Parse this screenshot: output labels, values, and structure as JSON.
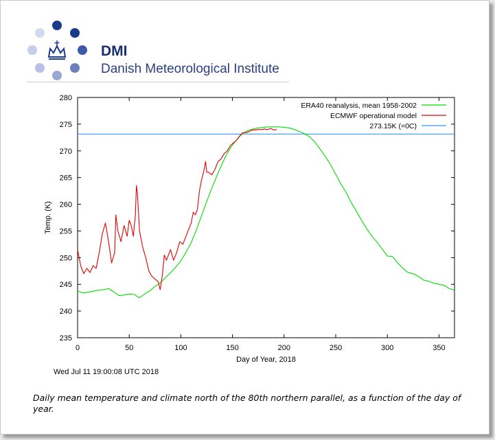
{
  "header": {
    "brand": "DMI",
    "institute": "Danish Meteorological Institute",
    "logo_color": "#1a3a8c"
  },
  "timestamp": "Wed Jul 11 19:00:08 UTC 2018",
  "caption": "Daily mean temperature and climate north of the 80th northern parallel, as a function of the day of year.",
  "chart_data": {
    "type": "line",
    "xlabel": "Day of Year, 2018",
    "ylabel": "Temp. (K)",
    "xlim": [
      0,
      365
    ],
    "ylim": [
      235,
      280
    ],
    "xticks": [
      0,
      50,
      100,
      150,
      200,
      250,
      300,
      350
    ],
    "yticks": [
      235,
      240,
      245,
      250,
      255,
      260,
      265,
      270,
      275,
      280
    ],
    "grid": false,
    "legend_position": "top-right",
    "series": [
      {
        "name": "ERA40 reanalysis, mean 1958-2002",
        "color": "#00dd00",
        "x": [
          0,
          5,
          10,
          15,
          20,
          25,
          30,
          35,
          40,
          45,
          50,
          55,
          58,
          60,
          65,
          70,
          75,
          80,
          85,
          90,
          95,
          100,
          105,
          110,
          115,
          120,
          125,
          130,
          135,
          140,
          145,
          150,
          155,
          160,
          165,
          170,
          175,
          180,
          185,
          190,
          195,
          200,
          205,
          210,
          215,
          220,
          225,
          230,
          235,
          240,
          245,
          250,
          255,
          260,
          265,
          270,
          275,
          280,
          285,
          290,
          295,
          300,
          305,
          310,
          315,
          320,
          325,
          330,
          335,
          340,
          345,
          350,
          355,
          360,
          365
        ],
        "y": [
          243.8,
          243.4,
          243.5,
          243.7,
          243.9,
          244.0,
          244.2,
          243.6,
          242.9,
          243.0,
          243.2,
          243.1,
          242.7,
          242.5,
          243.2,
          243.8,
          244.6,
          245.3,
          246.2,
          247.2,
          248.2,
          249.4,
          251.0,
          252.8,
          255.2,
          257.8,
          260.5,
          263.0,
          265.4,
          267.6,
          269.6,
          271.1,
          272.3,
          273.3,
          273.8,
          274.1,
          274.3,
          274.4,
          274.5,
          274.5,
          274.5,
          274.4,
          274.3,
          274.0,
          273.6,
          273.2,
          272.6,
          271.6,
          270.3,
          268.9,
          267.4,
          265.6,
          263.8,
          262.2,
          260.3,
          258.7,
          257.0,
          255.4,
          254.0,
          252.9,
          251.6,
          250.3,
          250.2,
          249.0,
          248.0,
          247.2,
          247.0,
          246.5,
          245.8,
          245.6,
          245.2,
          245.0,
          244.8,
          244.2,
          243.9
        ]
      },
      {
        "name": "ECMWF operational model",
        "color": "#e00000",
        "x": [
          0,
          3,
          6,
          9,
          12,
          15,
          18,
          21,
          24,
          27,
          30,
          33,
          36,
          37,
          39,
          42,
          45,
          48,
          50,
          52,
          54,
          56,
          57,
          58,
          60,
          63,
          66,
          69,
          72,
          75,
          78,
          80,
          82,
          84,
          86,
          88,
          90,
          93,
          96,
          99,
          102,
          105,
          108,
          110,
          112,
          114,
          116,
          118,
          120,
          122,
          124,
          125,
          127,
          130,
          133,
          136,
          139,
          142,
          145,
          148,
          151,
          154,
          157,
          160,
          163,
          166,
          169,
          172,
          175,
          178,
          181,
          184,
          187,
          190,
          193
        ],
        "y": [
          251.5,
          248.5,
          247.0,
          248.0,
          247.2,
          248.5,
          248.0,
          251.0,
          254.5,
          256.5,
          253.0,
          249.0,
          251.0,
          258.0,
          255.0,
          253.0,
          256.0,
          254.0,
          257.0,
          256.0,
          254.0,
          258.0,
          263.5,
          262.0,
          255.0,
          252.0,
          250.0,
          247.5,
          246.5,
          246.0,
          245.5,
          244.0,
          246.5,
          250.5,
          249.5,
          250.5,
          251.5,
          249.5,
          251.0,
          253.0,
          252.5,
          254.0,
          255.5,
          256.5,
          258.5,
          258.0,
          259.0,
          262.5,
          264.5,
          266.0,
          268.0,
          266.0,
          266.0,
          265.5,
          266.5,
          268.0,
          268.5,
          269.5,
          270.0,
          271.0,
          271.5,
          272.0,
          272.8,
          273.4,
          273.4,
          273.6,
          273.9,
          273.9,
          274.0,
          274.0,
          274.1,
          274.0,
          274.2,
          273.9,
          274.0
        ]
      },
      {
        "name": "273.15K (=0C)",
        "color": "#3399ff",
        "x": [
          0,
          365
        ],
        "y": [
          273.15,
          273.15
        ]
      }
    ]
  }
}
